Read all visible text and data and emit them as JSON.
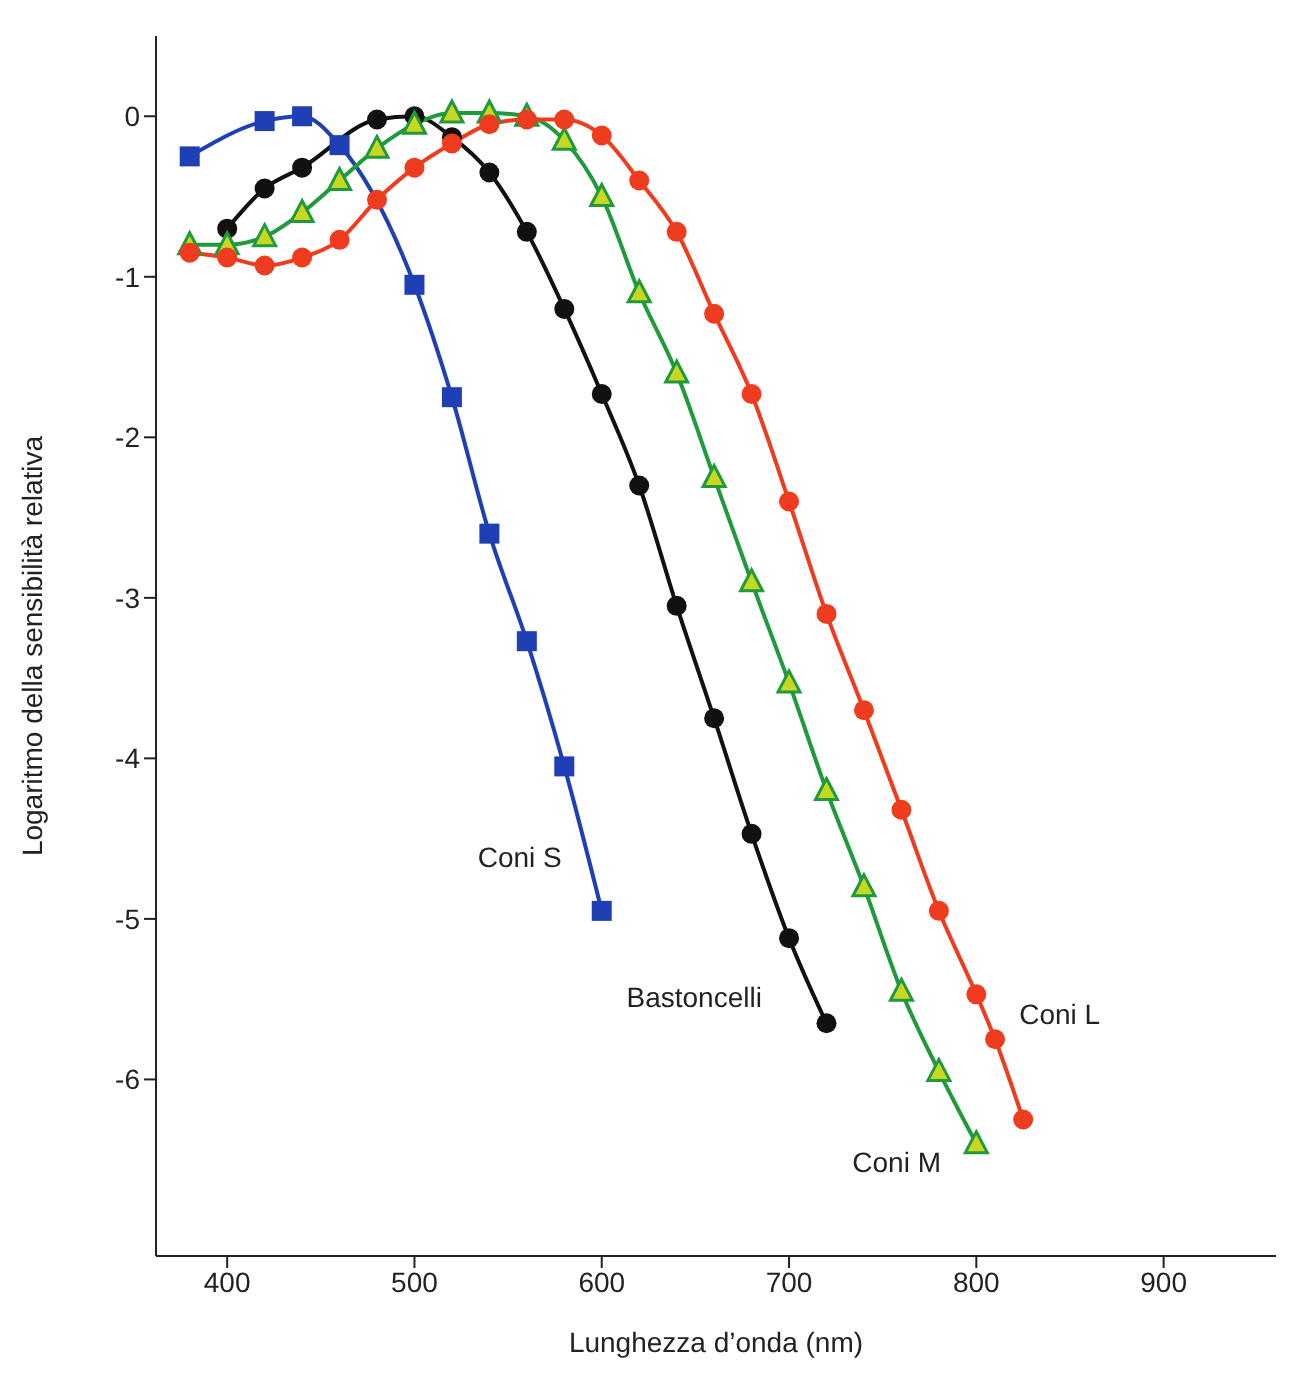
{
  "chart_data": {
    "type": "line",
    "xlabel": "Lunghezza d’onda (nm)",
    "ylabel": "Logaritmo della sensibilità relativa",
    "xlim": [
      362,
      960
    ],
    "xticks": [
      400,
      500,
      600,
      700,
      800,
      900
    ],
    "ylim": [
      -7.1,
      0.5
    ],
    "yticks": [
      -6,
      -5,
      -4,
      -3,
      -2,
      -1,
      0
    ],
    "series": [
      {
        "name": "Coni S",
        "color": "#1f3fb4",
        "marker": "square",
        "x": [
          380,
          420,
          440,
          460,
          500,
          520,
          540,
          560,
          580,
          600
        ],
        "values": [
          -0.25,
          -0.03,
          0.0,
          -0.18,
          -1.05,
          -1.75,
          -2.6,
          -3.27,
          -4.05,
          -4.95
        ]
      },
      {
        "name": "Bastoncelli",
        "color": "#111111",
        "marker": "circle",
        "x": [
          400,
          420,
          440,
          480,
          500,
          520,
          540,
          560,
          580,
          600,
          620,
          640,
          660,
          680,
          700,
          720
        ],
        "values": [
          -0.7,
          -0.45,
          -0.32,
          -0.02,
          0.0,
          -0.13,
          -0.35,
          -0.72,
          -1.2,
          -1.73,
          -2.3,
          -3.05,
          -3.75,
          -4.47,
          -5.12,
          -5.65
        ]
      },
      {
        "name": "Coni M",
        "color": "#1f9a3c",
        "marker": "triangle",
        "x": [
          380,
          400,
          420,
          440,
          460,
          480,
          500,
          520,
          540,
          560,
          580,
          600,
          620,
          640,
          660,
          680,
          700,
          720,
          740,
          760,
          780,
          800
        ],
        "values": [
          -0.8,
          -0.8,
          -0.75,
          -0.6,
          -0.4,
          -0.2,
          -0.05,
          0.02,
          0.02,
          0.0,
          -0.15,
          -0.5,
          -1.1,
          -1.6,
          -2.25,
          -2.9,
          -3.53,
          -4.2,
          -4.8,
          -5.45,
          -5.95,
          -6.4
        ]
      },
      {
        "name": "Coni L",
        "color": "#f03c1e",
        "marker": "circle",
        "x": [
          380,
          400,
          420,
          440,
          460,
          480,
          500,
          520,
          540,
          560,
          580,
          600,
          620,
          640,
          660,
          680,
          700,
          720,
          740,
          760,
          780,
          800,
          810,
          825
        ],
        "values": [
          -0.85,
          -0.88,
          -0.93,
          -0.88,
          -0.77,
          -0.52,
          -0.32,
          -0.17,
          -0.05,
          -0.02,
          -0.02,
          -0.12,
          -0.4,
          -0.72,
          -1.23,
          -1.73,
          -2.4,
          -3.1,
          -3.7,
          -4.32,
          -4.95,
          -5.47,
          -5.75,
          -6.25
        ]
      }
    ]
  }
}
